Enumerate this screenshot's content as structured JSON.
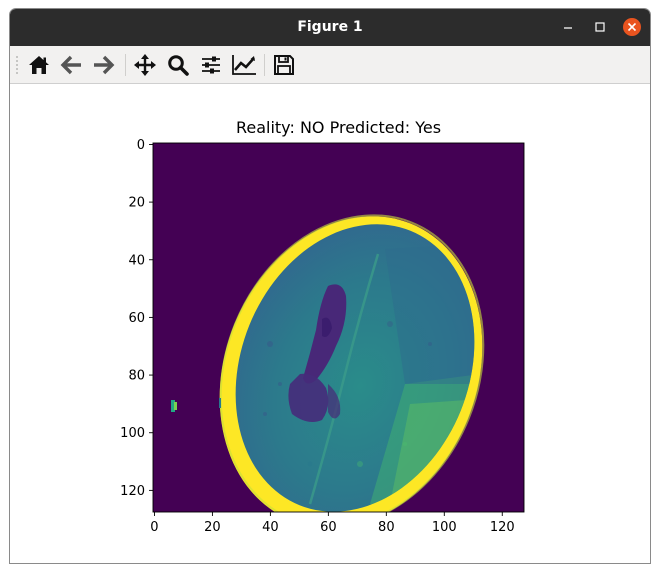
{
  "window": {
    "title": "Figure 1"
  },
  "toolbar": {
    "buttons": [
      {
        "name": "home-button",
        "icon": "home-icon",
        "tooltip": "Reset original view"
      },
      {
        "name": "back-button",
        "icon": "arrow-left-icon",
        "tooltip": "Back"
      },
      {
        "name": "forward-button",
        "icon": "arrow-right-icon",
        "tooltip": "Forward"
      },
      {
        "name": "pan-button",
        "icon": "move-icon",
        "tooltip": "Pan"
      },
      {
        "name": "zoom-button",
        "icon": "magnifier-icon",
        "tooltip": "Zoom"
      },
      {
        "name": "subplots-button",
        "icon": "sliders-icon",
        "tooltip": "Configure subplots"
      },
      {
        "name": "axes-button",
        "icon": "line-chart-icon",
        "tooltip": "Edit axis"
      },
      {
        "name": "save-button",
        "icon": "floppy-disk-icon",
        "tooltip": "Save"
      }
    ]
  },
  "chart_data": {
    "type": "heatmap",
    "title": "Reality: NO Predicted: Yes",
    "xlabel": "",
    "ylabel": "",
    "x_ticks": [
      0,
      20,
      40,
      60,
      80,
      100,
      120
    ],
    "y_ticks": [
      0,
      20,
      40,
      60,
      80,
      100,
      120
    ],
    "xlim": [
      -0.5,
      127.5
    ],
    "ylim": [
      127.5,
      -0.5
    ],
    "colormap": "viridis",
    "colors": {
      "background": "#440154",
      "tissue": "#2a7f8a",
      "bone": "#fde725",
      "ventricle": "#482878"
    }
  }
}
